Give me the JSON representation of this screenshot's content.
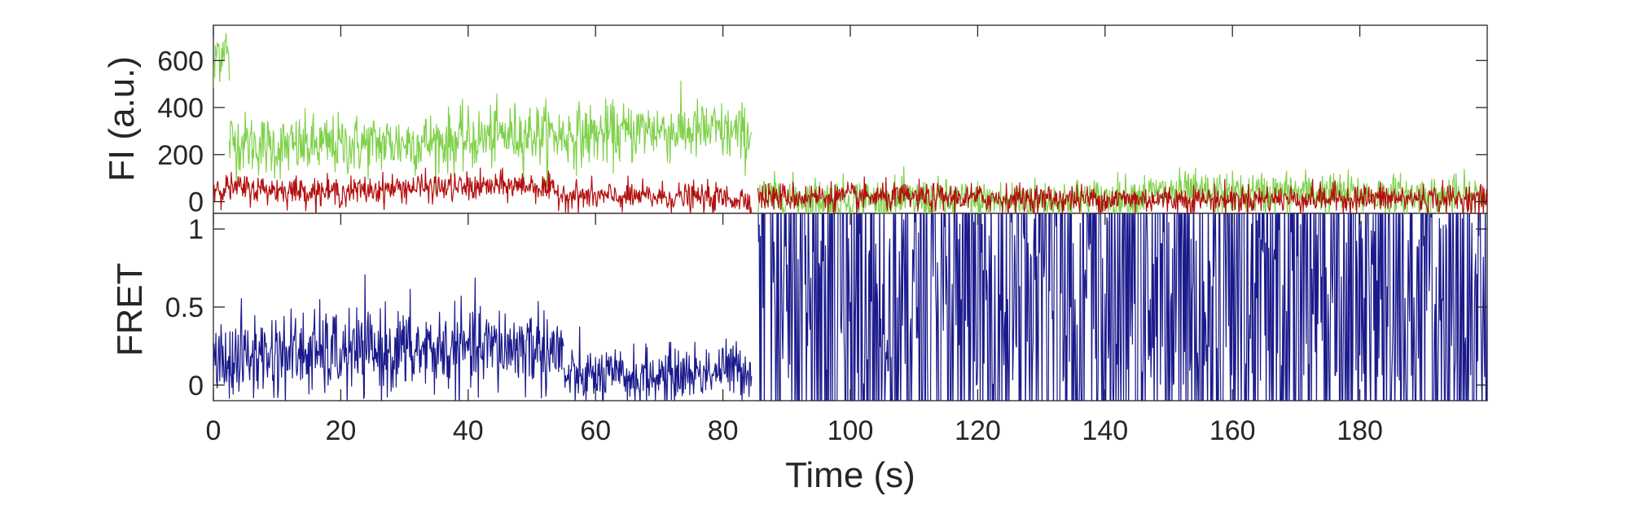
{
  "chart_data": [
    {
      "type": "line",
      "panel": "top",
      "ylabel": "FI (a.u.)",
      "ylim": [
        -50,
        750
      ],
      "yticks": [
        0,
        200,
        400,
        600
      ],
      "xlim": [
        0,
        200
      ],
      "xticks_shown": false,
      "grid": false,
      "series": [
        {
          "color": "#7fd14a",
          "segments": [
            {
              "x": [
                0,
                0.6,
                1.2,
                1.8,
                2.5
              ],
              "y": [
                500,
                660,
                620,
                700,
                560
              ]
            },
            {
              "x": [
                2.5,
                10,
                20,
                30,
                40,
                45,
                50,
                55,
                60,
                65,
                68,
                72,
                78,
                84.5
              ],
              "y": [
                260,
                230,
                240,
                250,
                260,
                280,
                290,
                280,
                285,
                290,
                310,
                300,
                300,
                280
              ]
            },
            {
              "x": [
                85.5,
                100,
                120,
                140,
                150,
                160,
                170,
                180,
                190,
                200
              ],
              "y": [
                20,
                10,
                0,
                10,
                40,
                30,
                40,
                30,
                20,
                20
              ]
            }
          ]
        },
        {
          "color": "#b30f0f",
          "segments": [
            {
              "x": [
                0,
                10,
                20,
                30,
                40,
                50,
                55,
                60,
                70,
                80,
                84.5
              ],
              "y": [
                60,
                50,
                40,
                60,
                60,
                70,
                30,
                20,
                20,
                15,
                10
              ]
            },
            {
              "x": [
                85.5,
                100,
                120,
                140,
                160,
                180,
                200
              ],
              "y": [
                20,
                20,
                15,
                10,
                10,
                15,
                10
              ]
            }
          ]
        }
      ]
    },
    {
      "type": "line",
      "panel": "bottom",
      "xlabel": "Time (s)",
      "ylabel": "FRET",
      "xlim": [
        0,
        200
      ],
      "ylim": [
        -0.1,
        1.1
      ],
      "xticks": [
        0,
        20,
        40,
        60,
        80,
        100,
        120,
        140,
        160,
        180
      ],
      "yticks": [
        0,
        0.5,
        1
      ],
      "ytick_labels": [
        "0",
        "0.5",
        "1"
      ],
      "grid": false,
      "series": [
        {
          "color": "#1a1a8c",
          "segments": [
            {
              "x": [
                0,
                10,
                20,
                30,
                40,
                50,
                55
              ],
              "y": [
                0.15,
                0.2,
                0.2,
                0.22,
                0.22,
                0.25,
                0.2
              ]
            },
            {
              "x": [
                55,
                60,
                70,
                80,
                84.5
              ],
              "y": [
                0.05,
                0.05,
                0.05,
                0.1,
                0.1
              ]
            },
            {
              "x": [
                85.5,
                100,
                120,
                140,
                160,
                180,
                200
              ],
              "y": [
                0.5,
                0.5,
                0.5,
                0.5,
                0.5,
                0.5,
                0.5
              ],
              "noise": "full-range"
            }
          ]
        }
      ]
    }
  ]
}
